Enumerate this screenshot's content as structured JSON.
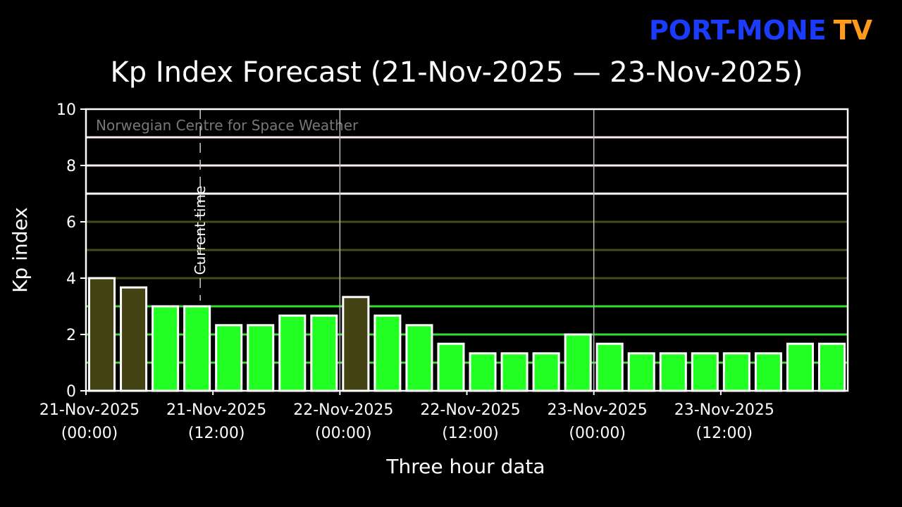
{
  "chart_data": {
    "type": "bar",
    "logo": {
      "left": "PORT-MONE",
      "right": "TV"
    },
    "title": "Kp Index Forecast (21-Nov-2025 — 23-Nov-2025)",
    "annotation": "Norwegian Centre for Space Weather",
    "x_label": "Three hour data",
    "y_label": "Kp index",
    "values": [
      4,
      3.67,
      3,
      3,
      2.33,
      2.33,
      2.67,
      2.67,
      3.33,
      2.67,
      2.33,
      1.67,
      1.33,
      1.33,
      1.33,
      2,
      1.67,
      1.33,
      1.33,
      1.33,
      1.33,
      1.33,
      1.67,
      1.67
    ],
    "colors": [
      "#434313",
      "#434313",
      "#22ff22",
      "#22ff22",
      "#22ff22",
      "#22ff22",
      "#22ff22",
      "#22ff22",
      "#434313",
      "#22ff22",
      "#22ff22",
      "#22ff22",
      "#22ff22",
      "#22ff22",
      "#22ff22",
      "#22ff22",
      "#22ff22",
      "#22ff22",
      "#22ff22",
      "#22ff22",
      "#22ff22",
      "#22ff22",
      "#22ff22",
      "#22ff22"
    ],
    "xlim": [
      0,
      24
    ],
    "xticks": [
      {
        "value": 0,
        "label": [
          "21-Nov-2025",
          "(00:00)"
        ]
      },
      {
        "value": 4,
        "label": [
          "21-Nov-2025",
          "(12:00)"
        ]
      },
      {
        "value": 8,
        "label": [
          "22-Nov-2025",
          "(00:00)"
        ]
      },
      {
        "value": 12,
        "label": [
          "22-Nov-2025",
          "(12:00)"
        ]
      },
      {
        "value": 16,
        "label": [
          "23-Nov-2025",
          "(00:00)"
        ]
      },
      {
        "value": 20,
        "label": [
          "23-Nov-2025",
          "(12:00)"
        ]
      }
    ],
    "ylim": [
      0,
      10
    ],
    "yticks": [
      0,
      2,
      4,
      6,
      8,
      10
    ],
    "day_lines": [
      8,
      16
    ],
    "current_time": {
      "value": 3.6,
      "label": "Current time"
    },
    "threshold_lines": [
      {
        "value": 1,
        "color": "#33dd33"
      },
      {
        "value": 2,
        "color": "#33dd33"
      },
      {
        "value": 3,
        "color": "#33dd33"
      },
      {
        "value": 4,
        "color": "#4a4a14"
      },
      {
        "value": 5,
        "color": "#4a4a14"
      },
      {
        "value": 6,
        "color": "#4a4a14"
      },
      {
        "value": 7,
        "color": "#ffffff"
      },
      {
        "value": 8,
        "color": "#ffeeee"
      },
      {
        "value": 9,
        "color": "#ffe8e8"
      }
    ]
  }
}
